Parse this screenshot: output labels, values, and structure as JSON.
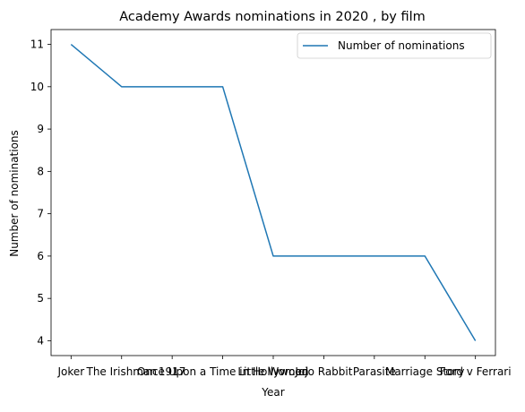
{
  "chart_data": {
    "type": "line",
    "title": "Academy Awards nominations in 2020 , by film",
    "xlabel": "Year",
    "ylabel": "Number of nominations",
    "categories": [
      "Joker",
      "The Irishman",
      "1917",
      "Once Upon a Time in Hollywood",
      "Little Women",
      "Jojo Rabbit",
      "Parasite",
      "Marriage Story",
      "Ford v Ferrari"
    ],
    "series": [
      {
        "name": "Number of nominations",
        "values": [
          11,
          10,
          10,
          10,
          6,
          6,
          6,
          6,
          4
        ],
        "color": "#1f77b4"
      }
    ],
    "ylim": [
      3.65,
      11.35
    ],
    "yticks": [
      4,
      5,
      6,
      7,
      8,
      9,
      10,
      11
    ],
    "grid": false,
    "legend_position": "top-right"
  }
}
